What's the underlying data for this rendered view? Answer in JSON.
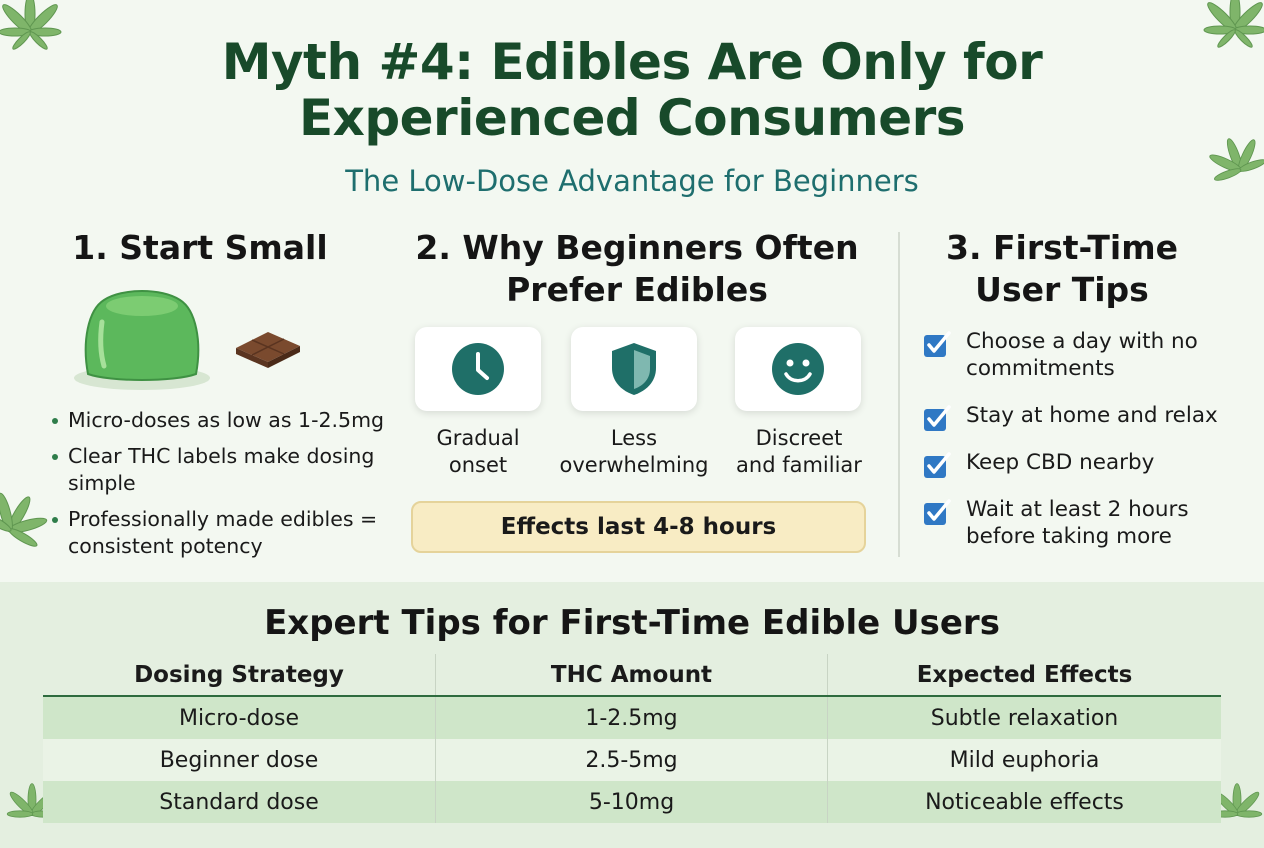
{
  "header": {
    "title_line1": "Myth #4: Edibles Are Only for",
    "title_line2": "Experienced Consumers",
    "subtitle": "The Low-Dose Advantage for Beginners"
  },
  "section1": {
    "heading": "1. Start Small",
    "bullets": [
      "Micro-doses as low as 1-2.5mg",
      "Clear THC labels make dosing simple",
      "Professionally made edibles = consistent potency"
    ]
  },
  "section2": {
    "heading_line1": "2. Why Beginners Often",
    "heading_line2": "Prefer Edibles",
    "cards": [
      {
        "icon": "clock-icon",
        "label_line1": "Gradual",
        "label_line2": "onset"
      },
      {
        "icon": "shield-icon",
        "label_line1": "Less",
        "label_line2": "overwhelming"
      },
      {
        "icon": "smiley-icon",
        "label_line1": "Discreet",
        "label_line2": "and familiar"
      }
    ],
    "effects_note": "Effects last 4-8 hours"
  },
  "section3": {
    "heading_line1": "3. First-Time",
    "heading_line2": "User Tips",
    "tips": [
      "Choose a day with no commitments",
      "Stay at home and relax",
      "Keep CBD nearby",
      "Wait at least 2 hours before taking more"
    ]
  },
  "table": {
    "title": "Expert Tips for First-Time Edible Users",
    "headers": [
      "Dosing Strategy",
      "THC Amount",
      "Expected Effects"
    ],
    "rows": [
      [
        "Micro-dose",
        "1-2.5mg",
        "Subtle relaxation"
      ],
      [
        "Beginner dose",
        "2.5-5mg",
        "Mild euphoria"
      ],
      [
        "Standard dose",
        "5-10mg",
        "Noticeable effects"
      ]
    ]
  },
  "colors": {
    "title": "#184a2a",
    "subtitle": "#1e6e6e",
    "icon_teal": "#1f6f68",
    "check_blue": "#2f78c4",
    "gummy_green": "#5cb85c",
    "leaf_green": "#6ea85a"
  }
}
